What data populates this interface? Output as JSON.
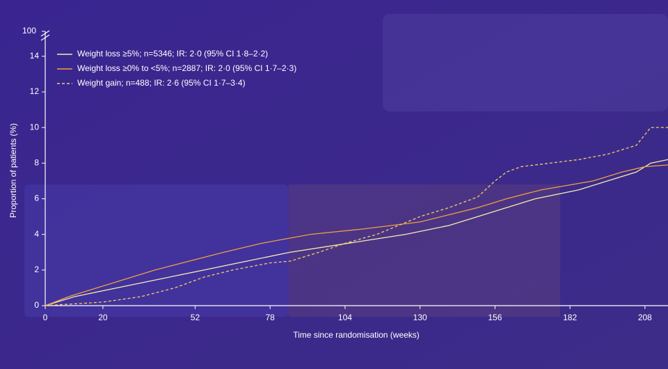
{
  "chart_data": {
    "type": "line",
    "x_label": "Time since randomisation (weeks)",
    "y_label": "Proportion of patients (%)",
    "y_break_label": "100",
    "xlim": [
      0,
      216
    ],
    "xticks": [
      0,
      20,
      52,
      78,
      104,
      130,
      156,
      182,
      208
    ],
    "ylim": [
      0,
      15.4
    ],
    "yticks": [
      0,
      2,
      4,
      6,
      8,
      10,
      12,
      14
    ],
    "legend": "top-left",
    "series": [
      {
        "name": "Weight loss ≥5%; n=5346; IR: 2·0 (95% CI 1·8–2·2)",
        "color": "#f7ecb0",
        "dash": false,
        "x": [
          0,
          10,
          25,
          40,
          55,
          70,
          85,
          105,
          125,
          140,
          150,
          160,
          170,
          185,
          195,
          205,
          210,
          216
        ],
        "values": [
          0,
          0.5,
          1,
          1.5,
          2,
          2.5,
          3,
          3.5,
          4,
          4.5,
          5,
          5.5,
          6,
          6.5,
          7,
          7.5,
          8,
          8.2
        ]
      },
      {
        "name": "Weight loss ≥0% to <5%; n=2887; IR: 2·0 (95% CI 1·7–2·3)",
        "color": "#f0a040",
        "dash": false,
        "x": [
          0,
          8,
          18,
          28,
          38,
          50,
          62,
          75,
          92,
          110,
          130,
          140,
          150,
          160,
          172,
          190,
          200,
          208,
          216
        ],
        "values": [
          0,
          0.5,
          1,
          1.5,
          2,
          2.5,
          3,
          3.5,
          4,
          4.3,
          4.7,
          5.1,
          5.5,
          6,
          6.5,
          7,
          7.5,
          7.8,
          7.9
        ]
      },
      {
        "name": "Weight gain; n=488; IR: 2·6 (95% CI 1·7–3·4)",
        "color": "#f5d060",
        "dash": true,
        "x": [
          0,
          20,
          33,
          45,
          55,
          65,
          78,
          85,
          95,
          104,
          115,
          130,
          140,
          150,
          156,
          160,
          165,
          185,
          195,
          205,
          210,
          216
        ],
        "values": [
          0,
          0.2,
          0.5,
          1,
          1.6,
          2,
          2.4,
          2.5,
          3,
          3.5,
          4,
          5,
          5.5,
          6.1,
          7,
          7.5,
          7.8,
          8.2,
          8.5,
          9,
          10,
          10
        ]
      }
    ]
  }
}
